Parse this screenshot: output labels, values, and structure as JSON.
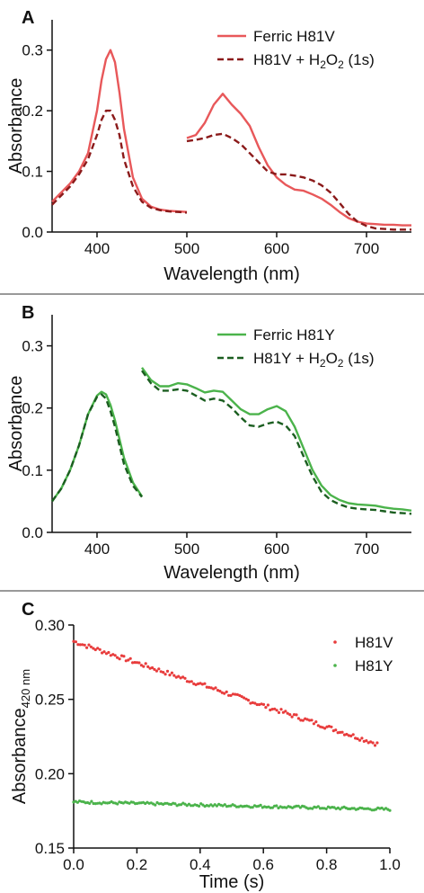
{
  "figure": {
    "panels": [
      "A",
      "B",
      "C"
    ]
  },
  "chart_data": [
    {
      "panel": "A",
      "type": "line",
      "xlabel": "Wavelength (nm)",
      "ylabel": "Absorbance",
      "xlim": [
        350,
        750
      ],
      "ylim": [
        0,
        0.35
      ],
      "x_ticks": [
        "400",
        "500",
        "600",
        "700"
      ],
      "y_ticks": [
        "0.0",
        "0.1",
        "0.2",
        "0.3"
      ],
      "grid": false,
      "legend_position": "top-right",
      "series": [
        {
          "name": "Ferric H81V",
          "color": "#e8585a",
          "dash": "solid",
          "segments": [
            {
              "x": [
                350,
                360,
                370,
                380,
                390,
                400,
                405,
                410,
                415,
                420,
                425,
                430,
                440,
                450,
                460,
                470,
                480,
                490,
                500
              ],
              "y": [
                0.05,
                0.065,
                0.08,
                0.1,
                0.13,
                0.2,
                0.25,
                0.285,
                0.3,
                0.28,
                0.23,
                0.17,
                0.09,
                0.055,
                0.042,
                0.037,
                0.035,
                0.034,
                0.033
              ]
            },
            {
              "x": [
                500,
                510,
                520,
                530,
                540,
                550,
                560,
                570,
                580,
                590,
                600,
                610,
                620,
                630,
                640,
                650,
                660,
                670,
                680,
                690,
                700,
                710,
                720,
                730,
                740,
                750
              ],
              "y": [
                0.155,
                0.16,
                0.18,
                0.21,
                0.228,
                0.21,
                0.195,
                0.175,
                0.14,
                0.11,
                0.09,
                0.078,
                0.07,
                0.068,
                0.062,
                0.055,
                0.045,
                0.033,
                0.023,
                0.017,
                0.014,
                0.013,
                0.012,
                0.012,
                0.011,
                0.011
              ]
            }
          ]
        },
        {
          "name": "H81V + H2O2 (1s)",
          "color": "#8b1a1a",
          "dash": "dashed",
          "segments": [
            {
              "x": [
                350,
                360,
                370,
                380,
                390,
                400,
                405,
                410,
                415,
                420,
                425,
                430,
                440,
                450,
                460,
                470,
                480,
                490,
                500
              ],
              "y": [
                0.045,
                0.06,
                0.075,
                0.095,
                0.12,
                0.16,
                0.185,
                0.2,
                0.2,
                0.185,
                0.16,
                0.12,
                0.075,
                0.05,
                0.04,
                0.036,
                0.034,
                0.033,
                0.032
              ]
            },
            {
              "x": [
                500,
                510,
                520,
                530,
                540,
                550,
                560,
                570,
                580,
                590,
                600,
                610,
                620,
                630,
                640,
                650,
                660,
                670,
                680,
                690,
                700,
                710,
                720,
                730,
                740,
                750
              ],
              "y": [
                0.15,
                0.152,
                0.155,
                0.16,
                0.162,
                0.155,
                0.145,
                0.13,
                0.115,
                0.1,
                0.095,
                0.095,
                0.093,
                0.09,
                0.085,
                0.077,
                0.065,
                0.048,
                0.03,
                0.017,
                0.01,
                0.006,
                0.005,
                0.004,
                0.004,
                0.004
              ]
            }
          ]
        }
      ]
    },
    {
      "panel": "B",
      "type": "line",
      "xlabel": "Wavelength (nm)",
      "ylabel": "Absorbance",
      "xlim": [
        350,
        750
      ],
      "ylim": [
        0,
        0.35
      ],
      "x_ticks": [
        "400",
        "500",
        "600",
        "700"
      ],
      "y_ticks": [
        "0.0",
        "0.1",
        "0.2",
        "0.3"
      ],
      "grid": false,
      "legend_position": "top-right",
      "series": [
        {
          "name": "Ferric H81Y",
          "color": "#4bb34b",
          "dash": "solid",
          "segments": [
            {
              "x": [
                350,
                360,
                370,
                380,
                390,
                400,
                405,
                410,
                415,
                420,
                425,
                430,
                440,
                450
              ],
              "y": [
                0.05,
                0.07,
                0.1,
                0.14,
                0.19,
                0.22,
                0.226,
                0.222,
                0.205,
                0.18,
                0.15,
                0.12,
                0.08,
                0.058
              ]
            },
            {
              "x": [
                450,
                460,
                470,
                480,
                490,
                500,
                510,
                520,
                530,
                540,
                550,
                560,
                570,
                580,
                590,
                600,
                610,
                620,
                630,
                640,
                650,
                660,
                670,
                680,
                690,
                700,
                710,
                720,
                730,
                740,
                750
              ],
              "y": [
                0.265,
                0.245,
                0.235,
                0.235,
                0.24,
                0.238,
                0.232,
                0.225,
                0.228,
                0.226,
                0.212,
                0.198,
                0.19,
                0.19,
                0.198,
                0.203,
                0.195,
                0.17,
                0.135,
                0.1,
                0.075,
                0.06,
                0.052,
                0.047,
                0.045,
                0.044,
                0.043,
                0.04,
                0.038,
                0.037,
                0.035
              ]
            }
          ]
        },
        {
          "name": "H81Y + H2O2 (1s)",
          "color": "#1b5e20",
          "dash": "dashed",
          "segments": [
            {
              "x": [
                350,
                360,
                370,
                380,
                390,
                400,
                405,
                410,
                415,
                420,
                425,
                430,
                440,
                450
              ],
              "y": [
                0.05,
                0.07,
                0.1,
                0.14,
                0.19,
                0.218,
                0.222,
                0.215,
                0.195,
                0.17,
                0.14,
                0.11,
                0.075,
                0.057
              ]
            },
            {
              "x": [
                450,
                460,
                470,
                480,
                490,
                500,
                510,
                520,
                530,
                540,
                550,
                560,
                570,
                580,
                590,
                600,
                610,
                620,
                630,
                640,
                650,
                660,
                670,
                680,
                690,
                700,
                710,
                720,
                730,
                740,
                750
              ],
              "y": [
                0.26,
                0.24,
                0.228,
                0.228,
                0.23,
                0.228,
                0.22,
                0.212,
                0.215,
                0.212,
                0.2,
                0.185,
                0.172,
                0.17,
                0.175,
                0.178,
                0.172,
                0.155,
                0.122,
                0.09,
                0.065,
                0.052,
                0.045,
                0.04,
                0.038,
                0.037,
                0.036,
                0.034,
                0.032,
                0.031,
                0.03
              ]
            }
          ]
        }
      ]
    },
    {
      "panel": "C",
      "type": "scatter",
      "xlabel": "Time (s)",
      "ylabel": "Absorbance",
      "ylabel_subscript": "420 nm",
      "xlim": [
        0,
        1.0
      ],
      "ylim": [
        0.15,
        0.3
      ],
      "x_ticks": [
        "0.0",
        "0.2",
        "0.4",
        "0.6",
        "0.8",
        "1.0"
      ],
      "y_ticks": [
        "0.15",
        "0.20",
        "0.25",
        "0.30"
      ],
      "grid": false,
      "legend_position": "top-right",
      "series": [
        {
          "name": "H81V",
          "color": "#e83c3c",
          "trend": {
            "x_start": 0.0,
            "x_end": 0.96,
            "y_start": 0.289,
            "y_end": 0.22,
            "n_points": 140,
            "noise": 0.0015
          }
        },
        {
          "name": "H81Y",
          "color": "#4bb34b",
          "trend": {
            "x_start": 0.0,
            "x_end": 1.0,
            "y_start": 0.181,
            "y_end": 0.176,
            "n_points": 160,
            "noise": 0.0009
          }
        }
      ]
    }
  ]
}
